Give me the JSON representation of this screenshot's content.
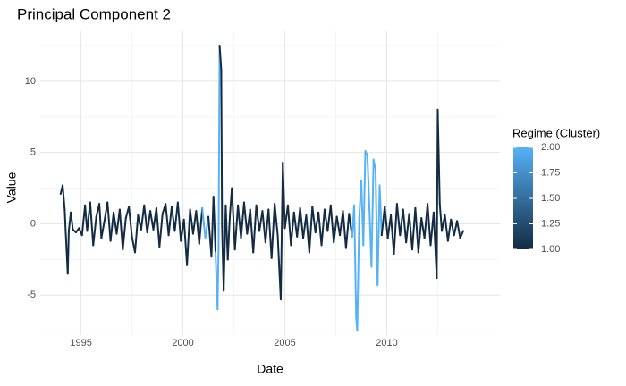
{
  "chart_data": {
    "type": "line",
    "title": "Principal Component 2",
    "x_label": "Date",
    "y_label": "Value",
    "xlim": [
      1993.0,
      2015.55
    ],
    "xticks": [
      1995,
      2000,
      2005,
      2010
    ],
    "minor_xticks": [
      1997.5,
      2002.5,
      2007.5,
      2012.5
    ],
    "ylim": [
      -7.8,
      13.5
    ],
    "yticks": [
      -5,
      0,
      5,
      10
    ],
    "minor_yticks": [
      -7.5,
      -2.5,
      2.5,
      7.5,
      12.5
    ],
    "grid": true,
    "x": [
      1994.0,
      1994.1,
      1994.2,
      1994.25,
      1994.35,
      1994.4,
      1994.5,
      1994.6,
      1994.75,
      1994.9,
      1995.05,
      1995.2,
      1995.3,
      1995.45,
      1995.6,
      1995.75,
      1995.9,
      1996.0,
      1996.15,
      1996.3,
      1996.45,
      1996.6,
      1996.75,
      1996.9,
      1997.05,
      1997.2,
      1997.35,
      1997.5,
      1997.65,
      1997.8,
      1997.95,
      1998.1,
      1998.25,
      1998.4,
      1998.55,
      1998.7,
      1998.85,
      1999.0,
      1999.15,
      1999.3,
      1999.45,
      1999.6,
      1999.75,
      1999.9,
      2000.05,
      2000.2,
      2000.35,
      2000.5,
      2000.65,
      2000.8,
      2000.95,
      2001.1,
      2001.25,
      2001.4,
      2001.5,
      2001.6,
      2001.7,
      2001.75,
      2001.8,
      2001.88,
      2001.92,
      2002.0,
      2002.1,
      2002.2,
      2002.3,
      2002.4,
      2002.55,
      2002.7,
      2002.85,
      2003.0,
      2003.15,
      2003.3,
      2003.45,
      2003.6,
      2003.75,
      2003.9,
      2004.05,
      2004.2,
      2004.35,
      2004.5,
      2004.65,
      2004.8,
      2004.9,
      2005.0,
      2005.15,
      2005.3,
      2005.45,
      2005.6,
      2005.75,
      2005.9,
      2006.05,
      2006.2,
      2006.35,
      2006.5,
      2006.65,
      2006.8,
      2006.95,
      2007.1,
      2007.25,
      2007.4,
      2007.55,
      2007.7,
      2007.85,
      2008.0,
      2008.15,
      2008.3,
      2008.4,
      2008.5,
      2008.55,
      2008.65,
      2008.75,
      2008.85,
      2008.95,
      2009.05,
      2009.15,
      2009.25,
      2009.35,
      2009.45,
      2009.55,
      2009.65,
      2009.75,
      2009.9,
      2010.05,
      2010.2,
      2010.35,
      2010.5,
      2010.65,
      2010.8,
      2010.95,
      2011.1,
      2011.25,
      2011.4,
      2011.55,
      2011.7,
      2011.85,
      2012.0,
      2012.15,
      2012.3,
      2012.45,
      2012.5,
      2012.6,
      2012.7,
      2012.85,
      2013.0,
      2013.15,
      2013.3,
      2013.45,
      2013.6,
      2013.75
    ],
    "series": [
      {
        "values": [
          2.1,
          2.7,
          1.0,
          -0.6,
          -3.5,
          -0.5,
          0.8,
          -0.4,
          -0.6,
          -0.3,
          -0.8,
          1.3,
          -0.5,
          1.5,
          -1.5,
          0.5,
          1.4,
          -1.0,
          0.2,
          1.5,
          -1.2,
          0.8,
          -0.7,
          1.0,
          -1.8,
          0.4,
          1.2,
          -0.9,
          -2.0,
          0.6,
          -0.4,
          1.3,
          -0.6,
          0.9,
          -0.4,
          1.1,
          -1.6,
          0.7,
          1.4,
          -0.8,
          1.2,
          -0.5,
          1.5,
          -1.2,
          0.3,
          -2.9,
          1.0,
          -0.7,
          0.9,
          -1.4,
          1.1,
          -1.0,
          0.5,
          -2.3,
          1.9,
          -2.0,
          -6.0,
          -1.5,
          12.5,
          10.8,
          -0.2,
          -4.7,
          1.3,
          -2.5,
          0.5,
          2.5,
          -1.8,
          1.3,
          -1.0,
          1.5,
          -0.7,
          1.0,
          -2.0,
          1.3,
          -0.5,
          0.9,
          -1.3,
          1.0,
          -2.4,
          1.4,
          -0.8,
          -5.3,
          4.3,
          -0.3,
          1.3,
          -1.5,
          0.8,
          -0.9,
          1.1,
          -1.0,
          0.6,
          -2.0,
          1.2,
          -0.6,
          0.8,
          -1.5,
          1.0,
          -0.5,
          1.3,
          -1.3,
          0.5,
          -0.8,
          0.9,
          -1.7,
          0.7,
          -0.9,
          1.3,
          -6.6,
          -7.5,
          0.5,
          3.0,
          -1.5,
          5.1,
          4.8,
          1.0,
          -3.0,
          4.5,
          3.8,
          -4.3,
          2.7,
          -0.8,
          1.2,
          -1.0,
          0.6,
          -2.1,
          1.4,
          -0.8,
          1.0,
          -1.3,
          0.7,
          -1.8,
          1.1,
          -2.0,
          0.4,
          -1.0,
          1.4,
          -1.5,
          0.8,
          -3.8,
          8.0,
          1.4,
          -0.5,
          0.6,
          -1.2,
          0.3,
          -0.8,
          0.2,
          -1.0,
          -0.5
        ],
        "regime": [
          1,
          1,
          1,
          1,
          1,
          1,
          1,
          1,
          1,
          1,
          1,
          1,
          1,
          1,
          1,
          1,
          1,
          1,
          1,
          1,
          1,
          1,
          1,
          1,
          1,
          1,
          1,
          1,
          1,
          1,
          1,
          1,
          1,
          1,
          1,
          1,
          1,
          1,
          1,
          1,
          1,
          1,
          1,
          1,
          1,
          1,
          1,
          1,
          1,
          1,
          2,
          2,
          1,
          1,
          1,
          2,
          2,
          2,
          1,
          1,
          1,
          1,
          1,
          1,
          1,
          1,
          1,
          1,
          1,
          1,
          1,
          1,
          1,
          1,
          1,
          1,
          1,
          1,
          1,
          1,
          1,
          1,
          1,
          1,
          1,
          1,
          1,
          1,
          1,
          1,
          1,
          1,
          1,
          1,
          1,
          1,
          1,
          1,
          1,
          1,
          1,
          1,
          1,
          1,
          1,
          2,
          2,
          2,
          2,
          2,
          2,
          2,
          2,
          2,
          2,
          2,
          2,
          2,
          2,
          2,
          1,
          1,
          1,
          1,
          1,
          1,
          1,
          1,
          1,
          1,
          1,
          1,
          1,
          1,
          1,
          1,
          1,
          1,
          1,
          1,
          1,
          1,
          1,
          1,
          1,
          1,
          1,
          1,
          1
        ]
      }
    ],
    "legend": {
      "title": "Regime (Cluster)",
      "lim": [
        1,
        2
      ],
      "low_color": "#132B43",
      "high_color": "#56B1F7",
      "ticks": [
        {
          "value": 1,
          "label": "1.00"
        },
        {
          "value": 1.25,
          "label": "1.25"
        },
        {
          "value": 1.5,
          "label": "1.50"
        },
        {
          "value": 1.75,
          "label": "1.75"
        },
        {
          "value": 2,
          "label": "2.00"
        }
      ]
    }
  }
}
